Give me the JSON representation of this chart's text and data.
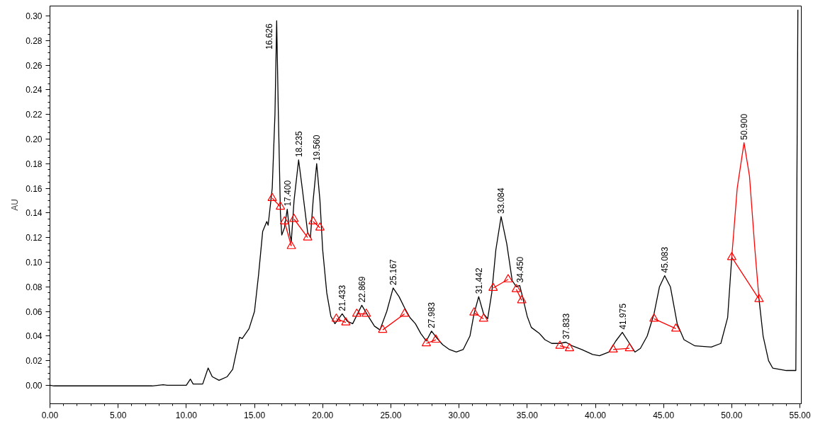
{
  "chart_data": {
    "type": "line",
    "ylabel": "AU",
    "xlim": [
      0,
      55.1
    ],
    "ylim": [
      -0.015,
      0.308
    ],
    "xticks": [
      {
        "value": 0,
        "label": "0.00"
      },
      {
        "value": 5,
        "label": "5.00"
      },
      {
        "value": 10,
        "label": "10.00"
      },
      {
        "value": 15,
        "label": "15.00"
      },
      {
        "value": 20,
        "label": "20.00"
      },
      {
        "value": 25,
        "label": "25.00"
      },
      {
        "value": 30,
        "label": "30.00"
      },
      {
        "value": 35,
        "label": "35.00"
      },
      {
        "value": 40,
        "label": "40.00"
      },
      {
        "value": 45,
        "label": "45.00"
      },
      {
        "value": 50,
        "label": "50.00"
      },
      {
        "value": 55,
        "label": "55.00"
      }
    ],
    "yticks": [
      {
        "value": 0,
        "label": "0.00"
      },
      {
        "value": 0.02,
        "label": "0.02"
      },
      {
        "value": 0.04,
        "label": "0.04"
      },
      {
        "value": 0.06,
        "label": "0.06"
      },
      {
        "value": 0.08,
        "label": "0.08"
      },
      {
        "value": 0.1,
        "label": "0.10"
      },
      {
        "value": 0.12,
        "label": "0.12"
      },
      {
        "value": 0.14,
        "label": "0.14"
      },
      {
        "value": 0.16,
        "label": "0.16"
      },
      {
        "value": 0.18,
        "label": "0.18"
      },
      {
        "value": 0.2,
        "label": "0.20"
      },
      {
        "value": 0.22,
        "label": "0.22"
      },
      {
        "value": 0.24,
        "label": "0.24"
      },
      {
        "value": 0.26,
        "label": "0.26"
      },
      {
        "value": 0.28,
        "label": "0.28"
      },
      {
        "value": 0.3,
        "label": "0.30"
      }
    ],
    "grid": false,
    "line_style": "solid",
    "series": [
      {
        "color": "#000000",
        "marker": "none",
        "x": [
          0,
          0.3,
          7.5,
          8.3,
          8.6,
          10.0,
          10.3,
          10.5,
          11.2,
          11.6,
          11.9,
          12.4,
          13.0,
          13.4,
          13.9,
          14.1,
          14.6,
          15.0,
          15.3,
          15.6,
          15.9,
          16.0,
          16.3,
          16.5,
          16.626,
          16.75,
          16.9,
          17.0,
          17.2,
          17.4,
          17.6,
          17.7,
          17.9,
          18.235,
          18.5,
          18.9,
          19.1,
          19.3,
          19.56,
          19.8,
          20.0,
          20.3,
          20.6,
          20.9,
          21.433,
          21.8,
          22.2,
          22.869,
          23.4,
          23.8,
          24.2,
          24.7,
          25.167,
          25.6,
          26.0,
          26.4,
          26.8,
          27.2,
          27.6,
          27.983,
          28.4,
          28.8,
          29.3,
          29.8,
          30.3,
          30.8,
          31.1,
          31.442,
          31.8,
          32.1,
          32.4,
          32.7,
          33.084,
          33.5,
          33.9,
          34.2,
          34.45,
          34.7,
          35.0,
          35.3,
          35.9,
          36.3,
          36.8,
          37.4,
          37.833,
          38.3,
          39.0,
          39.8,
          40.3,
          41.0,
          41.5,
          41.975,
          42.5,
          42.9,
          43.3,
          43.8,
          44.3,
          44.7,
          45.083,
          45.5,
          46.0,
          46.5,
          47.3,
          48.5,
          49.2,
          49.7,
          50.0,
          50.9,
          52.0,
          52.3,
          52.7,
          53.0,
          53.5,
          54.0,
          54.7,
          54.85
        ],
        "values": [
          0,
          -0.0005,
          -0.0005,
          0.0005,
          0,
          0,
          0.005,
          0.001,
          0.001,
          0.014,
          0.007,
          0.004,
          0.007,
          0.013,
          0.039,
          0.038,
          0.046,
          0.06,
          0.09,
          0.125,
          0.133,
          0.13,
          0.16,
          0.22,
          0.296,
          0.22,
          0.14,
          0.122,
          0.128,
          0.143,
          0.122,
          0.117,
          0.15,
          0.183,
          0.16,
          0.124,
          0.12,
          0.15,
          0.18,
          0.15,
          0.11,
          0.075,
          0.056,
          0.05,
          0.058,
          0.052,
          0.05,
          0.065,
          0.055,
          0.048,
          0.045,
          0.06,
          0.079,
          0.072,
          0.063,
          0.055,
          0.05,
          0.042,
          0.036,
          0.044,
          0.038,
          0.033,
          0.029,
          0.027,
          0.029,
          0.04,
          0.058,
          0.072,
          0.058,
          0.054,
          0.075,
          0.11,
          0.137,
          0.115,
          0.085,
          0.08,
          0.081,
          0.07,
          0.056,
          0.047,
          0.042,
          0.037,
          0.034,
          0.034,
          0.035,
          0.032,
          0.029,
          0.025,
          0.024,
          0.027,
          0.036,
          0.043,
          0.034,
          0.027,
          0.03,
          0.04,
          0.058,
          0.08,
          0.089,
          0.08,
          0.05,
          0.037,
          0.032,
          0.031,
          0.034,
          0.055,
          0.104,
          null,
          0.07,
          0.04,
          0.02,
          0.014,
          0.013,
          0.012,
          0.012,
          0.305
        ]
      },
      {
        "color": "#ff0000",
        "marker": "none",
        "x": [
          50.0,
          50.4,
          50.9,
          51.3,
          51.7,
          52.0
        ],
        "values": [
          0.104,
          0.16,
          0.197,
          0.17,
          0.11,
          0.07
        ]
      },
      {
        "color": "#ff0000",
        "marker": "triangle",
        "x": [
          16.3,
          16.9,
          null,
          17.2,
          17.7,
          null,
          17.9,
          18.9,
          null,
          19.3,
          19.8,
          null,
          21.0,
          21.7,
          null,
          22.5,
          23.2,
          null,
          24.4,
          26.0,
          null,
          27.6,
          28.3,
          null,
          31.1,
          31.8,
          null,
          32.5,
          33.6,
          null,
          34.2,
          34.6,
          null,
          37.4,
          38.1,
          null,
          41.3,
          42.5,
          null,
          44.3,
          45.9,
          null,
          50.0,
          52.0
        ],
        "values": [
          0.152,
          0.145,
          null,
          0.133,
          0.113,
          null,
          0.135,
          0.12,
          null,
          0.133,
          0.128,
          null,
          0.054,
          0.051,
          null,
          0.058,
          0.058,
          null,
          0.045,
          0.058,
          null,
          0.034,
          0.037,
          null,
          0.059,
          0.054,
          null,
          0.079,
          0.086,
          null,
          0.078,
          0.069,
          null,
          0.032,
          0.03,
          null,
          0.029,
          0.03,
          null,
          0.054,
          0.046,
          null,
          0.104,
          0.07
        ]
      }
    ],
    "annotations": [
      {
        "text": "16.626",
        "x": 16.626,
        "y": 0.296
      },
      {
        "text": "17.400",
        "x": 17.4,
        "y": 0.143
      },
      {
        "text": "18.235",
        "x": 18.235,
        "y": 0.183
      },
      {
        "text": "19.560",
        "x": 19.56,
        "y": 0.18
      },
      {
        "text": "21.433",
        "x": 21.433,
        "y": 0.058
      },
      {
        "text": "22.869",
        "x": 22.869,
        "y": 0.065
      },
      {
        "text": "25.167",
        "x": 25.167,
        "y": 0.079
      },
      {
        "text": "27.983",
        "x": 27.983,
        "y": 0.044
      },
      {
        "text": "31.442",
        "x": 31.442,
        "y": 0.072
      },
      {
        "text": "33.084",
        "x": 33.084,
        "y": 0.137
      },
      {
        "text": "34.450",
        "x": 34.45,
        "y": 0.081
      },
      {
        "text": "37.833",
        "x": 37.833,
        "y": 0.035
      },
      {
        "text": "41.975",
        "x": 41.975,
        "y": 0.043
      },
      {
        "text": "45.083",
        "x": 45.083,
        "y": 0.089
      },
      {
        "text": "50.900",
        "x": 50.9,
        "y": 0.197
      }
    ]
  }
}
